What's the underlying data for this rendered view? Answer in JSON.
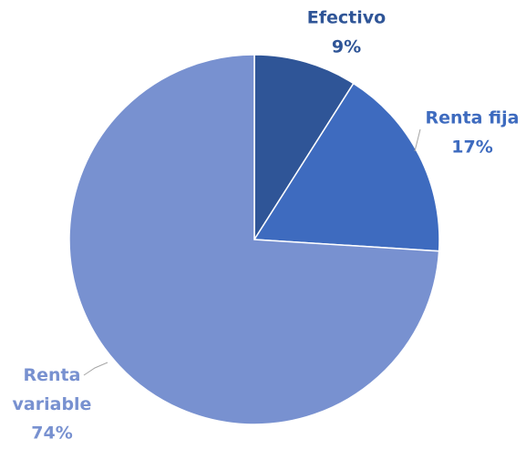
{
  "chart_data": {
    "type": "pie",
    "categories": [
      "Efectivo",
      "Renta fija",
      "Renta variable"
    ],
    "values": [
      9,
      17,
      74
    ],
    "value_labels": [
      "9%",
      "17%",
      "74%"
    ],
    "colors": [
      "#2f5597",
      "#3e6bbf",
      "#7891d0"
    ]
  }
}
